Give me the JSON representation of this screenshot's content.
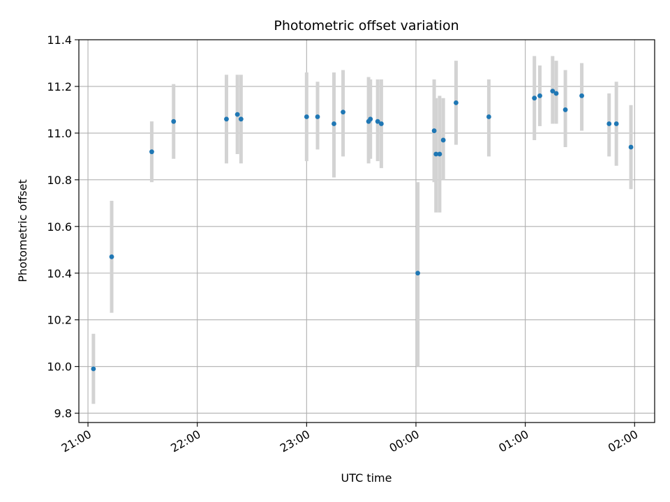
{
  "chart_data": {
    "type": "scatter",
    "title": "Photometric offset variation",
    "xlabel": "UTC time",
    "ylabel": "Photometric offset",
    "x_axis": {
      "kind": "time",
      "range": [
        "20:55",
        "02:11"
      ],
      "ticks": [
        "21:00",
        "22:00",
        "23:00",
        "00:00",
        "01:00",
        "02:00"
      ]
    },
    "y_axis": {
      "range": [
        9.76,
        11.4
      ],
      "ticks": [
        "9.8",
        "10.0",
        "10.2",
        "10.4",
        "10.6",
        "10.8",
        "11.0",
        "11.2",
        "11.4"
      ]
    },
    "grid": true,
    "point_color": "#1f77b4",
    "errorbar_color": "#d3d3d3",
    "series": [
      {
        "points": [
          {
            "x": "21:03",
            "y": 9.99,
            "ylo": 9.84,
            "yhi": 10.14
          },
          {
            "x": "21:13",
            "y": 10.47,
            "ylo": 10.23,
            "yhi": 10.71
          },
          {
            "x": "21:35",
            "y": 10.92,
            "ylo": 10.79,
            "yhi": 11.05
          },
          {
            "x": "21:47",
            "y": 11.05,
            "ylo": 10.89,
            "yhi": 11.21
          },
          {
            "x": "22:16",
            "y": 11.06,
            "ylo": 10.87,
            "yhi": 11.25
          },
          {
            "x": "22:22",
            "y": 11.08,
            "ylo": 10.91,
            "yhi": 11.25
          },
          {
            "x": "22:24",
            "y": 11.06,
            "ylo": 10.87,
            "yhi": 11.25
          },
          {
            "x": "23:00",
            "y": 11.07,
            "ylo": 10.88,
            "yhi": 11.26
          },
          {
            "x": "23:06",
            "y": 11.07,
            "ylo": 10.93,
            "yhi": 11.22
          },
          {
            "x": "23:15",
            "y": 11.04,
            "ylo": 10.81,
            "yhi": 11.26
          },
          {
            "x": "23:20",
            "y": 11.09,
            "ylo": 10.9,
            "yhi": 11.27
          },
          {
            "x": "23:34",
            "y": 11.05,
            "ylo": 10.87,
            "yhi": 11.24
          },
          {
            "x": "23:35",
            "y": 11.06,
            "ylo": 10.89,
            "yhi": 11.23
          },
          {
            "x": "23:39",
            "y": 11.05,
            "ylo": 10.88,
            "yhi": 11.23
          },
          {
            "x": "23:41",
            "y": 11.04,
            "ylo": 10.85,
            "yhi": 11.23
          },
          {
            "x": "00:01",
            "y": 10.4,
            "ylo": 10.0,
            "yhi": 10.79
          },
          {
            "x": "00:10",
            "y": 11.01,
            "ylo": 10.79,
            "yhi": 11.23
          },
          {
            "x": "00:11",
            "y": 10.91,
            "ylo": 10.66,
            "yhi": 11.15
          },
          {
            "x": "00:13",
            "y": 10.91,
            "ylo": 10.66,
            "yhi": 11.16
          },
          {
            "x": "00:15",
            "y": 10.97,
            "ylo": 10.8,
            "yhi": 11.15
          },
          {
            "x": "00:22",
            "y": 11.13,
            "ylo": 10.95,
            "yhi": 11.31
          },
          {
            "x": "00:40",
            "y": 11.07,
            "ylo": 10.9,
            "yhi": 11.23
          },
          {
            "x": "01:05",
            "y": 11.15,
            "ylo": 10.97,
            "yhi": 11.33
          },
          {
            "x": "01:08",
            "y": 11.16,
            "ylo": 11.03,
            "yhi": 11.29
          },
          {
            "x": "01:15",
            "y": 11.18,
            "ylo": 11.04,
            "yhi": 11.33
          },
          {
            "x": "01:17",
            "y": 11.17,
            "ylo": 11.04,
            "yhi": 11.31
          },
          {
            "x": "01:22",
            "y": 11.1,
            "ylo": 10.94,
            "yhi": 11.27
          },
          {
            "x": "01:31",
            "y": 11.16,
            "ylo": 11.01,
            "yhi": 11.3
          },
          {
            "x": "01:46",
            "y": 11.04,
            "ylo": 10.9,
            "yhi": 11.17
          },
          {
            "x": "01:50",
            "y": 11.04,
            "ylo": 10.86,
            "yhi": 11.22
          },
          {
            "x": "01:58",
            "y": 10.94,
            "ylo": 10.76,
            "yhi": 11.12
          }
        ]
      }
    ]
  }
}
